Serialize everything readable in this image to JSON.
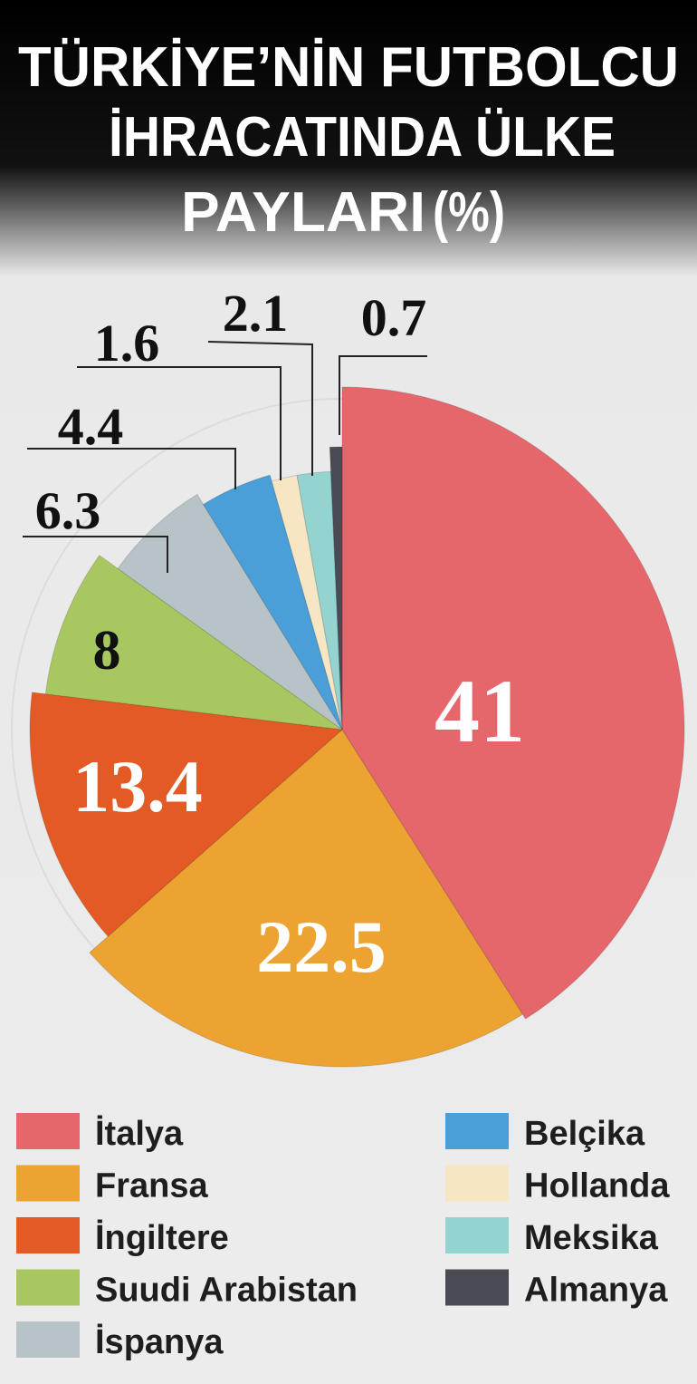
{
  "chart_data": {
    "type": "pie",
    "title": [
      "TÜRKİYE’NİN FUTBOLCU",
      "İHRACATINDA ÜLKE",
      "PAYLARI"
    ],
    "unit": "(%)",
    "categories": [
      "İtalya",
      "Fransa",
      "İngiltere",
      "Suudi Arabistan",
      "İspanya",
      "Belçika",
      "Hollanda",
      "Meksika",
      "Almanya"
    ],
    "values": [
      41,
      22.5,
      13.4,
      8,
      6.3,
      4.4,
      1.6,
      2.1,
      0.7
    ],
    "colors": [
      "#e5676b",
      "#eda332",
      "#e35a24",
      "#a9c760",
      "#b8c3c8",
      "#4a9fd8",
      "#f6e6c4",
      "#93d3d0",
      "#4a4b52"
    ]
  }
}
